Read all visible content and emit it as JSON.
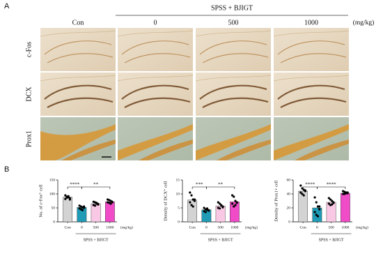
{
  "panel_labels": [
    "A",
    "B"
  ],
  "panel_a": {
    "group_label": "SPSS + BJIGT",
    "columns": [
      "Con",
      "0",
      "500",
      "1000"
    ],
    "unit": "(mg/kg)",
    "rows": [
      "c-Fos",
      "DCX",
      "Prox1"
    ]
  },
  "chart_data": [
    {
      "type": "bar",
      "ylabel": "No. of c-Fos⁺ cell",
      "categories": [
        "Con",
        "0",
        "500",
        "1000"
      ],
      "unit": "(mg/kg)",
      "group_label": "SPSS + BJIGT",
      "values": [
        88,
        52,
        65,
        72
      ],
      "colors": [
        "#d3d3d3",
        "#1f9bb5",
        "#f9c8e4",
        "#f04cc8"
      ],
      "points": [
        [
          95,
          90,
          88,
          85,
          82,
          87,
          92,
          80
        ],
        [
          58,
          55,
          52,
          50,
          48,
          45,
          42,
          55
        ],
        [
          72,
          70,
          65,
          62,
          60,
          58,
          68,
          64
        ],
        [
          80,
          78,
          75,
          72,
          70,
          68,
          65,
          70
        ]
      ],
      "ylim": [
        0,
        150
      ],
      "yticks": [
        0,
        50,
        100,
        150
      ],
      "comparisons": [
        {
          "between": [
            0,
            1
          ],
          "label": "****"
        },
        {
          "between": [
            1,
            3
          ],
          "label": "**"
        }
      ]
    },
    {
      "type": "bar",
      "ylabel": "Density of DCX⁺ cell",
      "categories": [
        "Con",
        "0",
        "500",
        "1000"
      ],
      "unit": "(mg/kg)",
      "group_label": "SPSS + BJIGT",
      "values": [
        7.8,
        4.3,
        5.7,
        7.2
      ],
      "colors": [
        "#d3d3d3",
        "#1f9bb5",
        "#f9c8e4",
        "#f04cc8"
      ],
      "points": [
        [
          10.5,
          9.5,
          8,
          7.5,
          7,
          6,
          5.5,
          8
        ],
        [
          5,
          4.5,
          4.3,
          4,
          3.8,
          3.5,
          4.8,
          4.2
        ],
        [
          7,
          6.5,
          6,
          5.5,
          5,
          4.8,
          5.8,
          5.2
        ],
        [
          9.5,
          9,
          7.5,
          7,
          6.5,
          5.5,
          6,
          6.8
        ]
      ],
      "ylim": [
        0,
        15
      ],
      "yticks": [
        0,
        5,
        10,
        15
      ],
      "comparisons": [
        {
          "between": [
            0,
            1
          ],
          "label": "***"
        },
        {
          "between": [
            1,
            3
          ],
          "label": "**"
        }
      ]
    },
    {
      "type": "bar",
      "ylabel": "Density of Prox1+ cell",
      "categories": [
        "Con",
        "0",
        "500",
        "1000"
      ],
      "unit": "(mg/kg)",
      "group_label": "SPSS + BJIGT",
      "values": [
        44,
        20,
        28,
        41
      ],
      "colors": [
        "#d3d3d3",
        "#1f9bb5",
        "#f9c8e4",
        "#f04cc8"
      ],
      "points": [
        [
          52,
          48,
          46,
          44,
          42,
          40,
          38,
          45
        ],
        [
          35,
          28,
          22,
          18,
          14,
          10,
          8,
          22
        ],
        [
          34,
          32,
          30,
          28,
          26,
          24,
          25,
          27
        ],
        [
          44,
          43,
          42,
          41,
          40,
          40,
          41,
          42
        ]
      ],
      "ylim": [
        0,
        60
      ],
      "yticks": [
        0,
        20,
        40,
        60
      ],
      "comparisons": [
        {
          "between": [
            0,
            1
          ],
          "label": "****"
        },
        {
          "between": [
            1,
            3
          ],
          "label": "****"
        }
      ]
    }
  ]
}
